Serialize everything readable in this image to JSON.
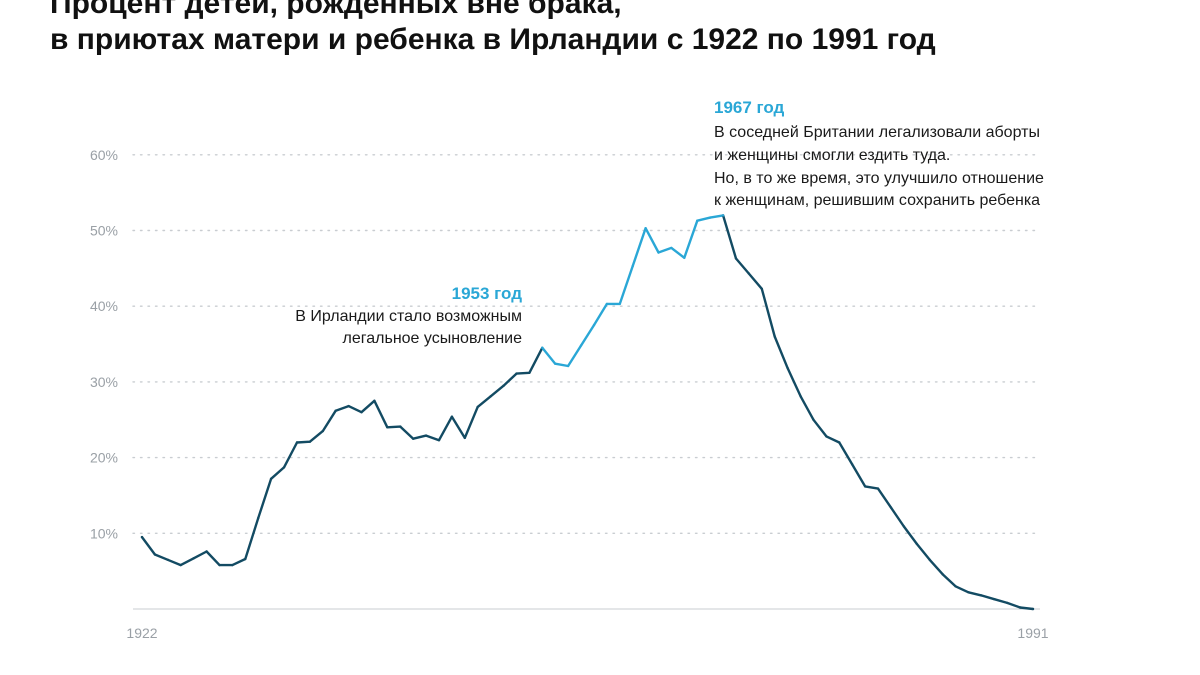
{
  "chart_data": {
    "type": "line",
    "title_lines": [
      "Процент детей, рожденных вне брака,",
      "в приютах матери и ребенка в Ирландии с 1922 по 1991 год"
    ],
    "xlabel": "",
    "ylabel": "",
    "x_tick_labels": [
      "1922",
      "1991"
    ],
    "y_tick_labels": [
      "10%",
      "20%",
      "30%",
      "40%",
      "50%",
      "60%"
    ],
    "xlim": [
      1922,
      1991
    ],
    "ylim": [
      0,
      60
    ],
    "grid": true,
    "colors": {
      "dark_line": "#134b63",
      "highlight_line": "#2aa7d6",
      "grid": "#c9cdd1"
    },
    "highlight_range": [
      1953,
      1967
    ],
    "series": [
      {
        "x": [
          1922,
          1923,
          1924,
          1925,
          1926,
          1927,
          1928,
          1929,
          1930,
          1931,
          1932,
          1933,
          1934,
          1935,
          1936,
          1937,
          1938,
          1939,
          1940,
          1941,
          1942,
          1943,
          1944,
          1945,
          1946,
          1947,
          1948,
          1949,
          1950,
          1951,
          1952,
          1953,
          1954,
          1955,
          1956,
          1957,
          1958,
          1959,
          1960,
          1961,
          1962,
          1963,
          1964,
          1965,
          1966,
          1967,
          1968,
          1969,
          1970,
          1971,
          1972,
          1973,
          1974,
          1975,
          1976,
          1977,
          1978,
          1979,
          1980,
          1981,
          1982,
          1983,
          1984,
          1985,
          1986,
          1987,
          1988,
          1989,
          1990,
          1991
        ],
        "values": [
          9.5,
          7.2,
          6.5,
          5.8,
          6.7,
          7.6,
          5.8,
          5.8,
          6.6,
          12,
          17.2,
          18.7,
          22,
          22.1,
          23.5,
          26.2,
          26.8,
          26,
          27.5,
          24,
          24.1,
          22.5,
          22.9,
          22.3,
          25.4,
          22.6,
          26.7,
          28.1,
          29.5,
          31.1,
          31.2,
          34.5,
          32.4,
          32.1,
          34.8,
          37.5,
          40.3,
          40.3,
          45.3,
          50.3,
          47.1,
          47.7,
          46.4,
          51.3,
          51.7,
          52,
          46.3,
          44.3,
          42.3,
          36,
          31.8,
          28.1,
          25,
          22.8,
          22,
          19.1,
          16.2,
          15.9,
          13.4,
          10.9,
          8.6,
          6.5,
          4.6,
          3,
          2.2,
          1.8,
          1.3,
          0.8,
          0.2,
          0
        ]
      }
    ],
    "annotations": [
      {
        "heading": "1953 год",
        "lines": [
          "В Ирландии стало возможным",
          "легальное усыновление"
        ]
      },
      {
        "heading": "1967 год",
        "lines": [
          "В соседней Британии легализовали аборты",
          "и женщины смогли ездить туда.",
          "Но, в то же время, это улучшило отношение",
          "к женщинам, решившим сохранить ребенка"
        ]
      }
    ]
  }
}
